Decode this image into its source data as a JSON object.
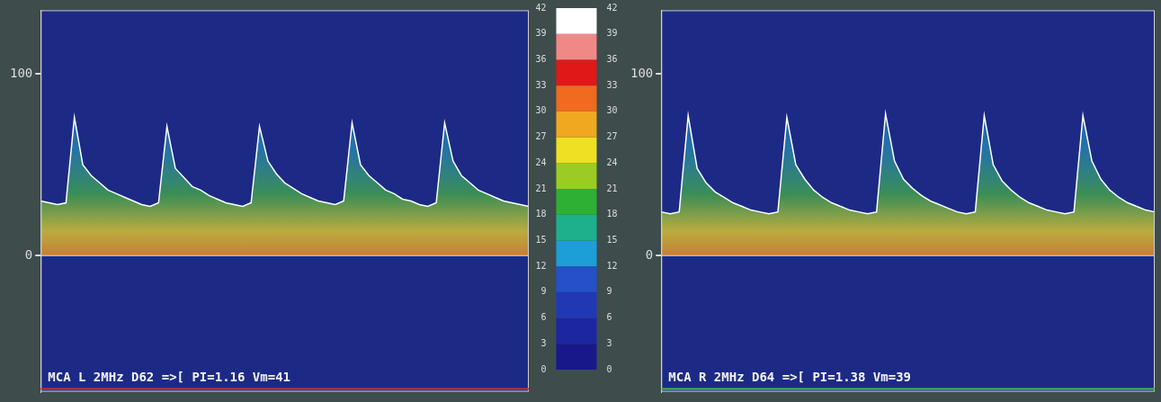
{
  "chart_data": [
    {
      "type": "line",
      "annotation": "MCA L 2MHz D62 =>[ PI=1.16 Vm=41",
      "categories": [
        null,
        null,
        null,
        null,
        null,
        null,
        null,
        null,
        null,
        null,
        null,
        null,
        null,
        null,
        null,
        null,
        null,
        null,
        null,
        null,
        null,
        null,
        null,
        null,
        null,
        null,
        null,
        null,
        null,
        null,
        null,
        null,
        null,
        null,
        null,
        null,
        null,
        null,
        null,
        null,
        null,
        null,
        null,
        null,
        null,
        null,
        null,
        null,
        null,
        null,
        null,
        null,
        null,
        null,
        null,
        null,
        null,
        null,
        null
      ],
      "values": [
        30,
        29,
        28,
        29,
        76,
        50,
        44,
        40,
        36,
        34,
        32,
        30,
        28,
        27,
        29,
        71,
        48,
        43,
        38,
        36,
        33,
        31,
        29,
        28,
        27,
        29,
        71,
        52,
        45,
        40,
        37,
        34,
        32,
        30,
        29,
        28,
        30,
        73,
        50,
        44,
        40,
        36,
        34,
        31,
        30,
        28,
        27,
        29,
        73,
        52,
        44,
        40,
        36,
        34,
        32,
        30,
        29,
        28,
        27
      ],
      "color": "#ffffff",
      "ylim": [
        -75,
        135
      ],
      "yticks": [
        0,
        100
      ],
      "tick_labels": "y"
    },
    {
      "type": "colorbar",
      "ylim": [
        0,
        42
      ],
      "yticks": [
        0,
        3,
        6,
        9,
        12,
        15,
        18,
        21,
        24,
        27,
        30,
        33,
        36,
        39,
        42
      ],
      "colors": [
        "#18188a",
        "#1c26a0",
        "#2038b4",
        "#2450c8",
        "#1e9ed6",
        "#1eb08c",
        "#2eb034",
        "#9ccc22",
        "#eee022",
        "#f0a820",
        "#f06a20",
        "#e01818",
        "#f08888",
        "#ffffff"
      ]
    },
    {
      "type": "line",
      "annotation": "MCA R 2MHz D64 =>[ PI=1.38 Vm=39",
      "categories": [
        null,
        null,
        null,
        null,
        null,
        null,
        null,
        null,
        null,
        null,
        null,
        null,
        null,
        null,
        null,
        null,
        null,
        null,
        null,
        null,
        null,
        null,
        null,
        null,
        null,
        null,
        null,
        null,
        null,
        null,
        null,
        null,
        null,
        null,
        null,
        null,
        null,
        null,
        null,
        null,
        null,
        null,
        null,
        null,
        null,
        null,
        null,
        null,
        null,
        null,
        null,
        null,
        null,
        null,
        null,
        null
      ],
      "values": [
        24,
        23,
        24,
        77,
        48,
        40,
        35,
        32,
        29,
        27,
        25,
        24,
        23,
        24,
        76,
        50,
        42,
        36,
        32,
        29,
        27,
        25,
        24,
        23,
        24,
        78,
        52,
        42,
        37,
        33,
        30,
        28,
        26,
        24,
        23,
        24,
        77,
        50,
        41,
        36,
        32,
        29,
        27,
        25,
        24,
        23,
        24,
        77,
        52,
        42,
        36,
        32,
        29,
        27,
        25,
        24
      ],
      "color": "#ffffff",
      "ylim": [
        -75,
        135
      ],
      "yticks": [
        0,
        100
      ],
      "tick_labels": "y"
    }
  ]
}
